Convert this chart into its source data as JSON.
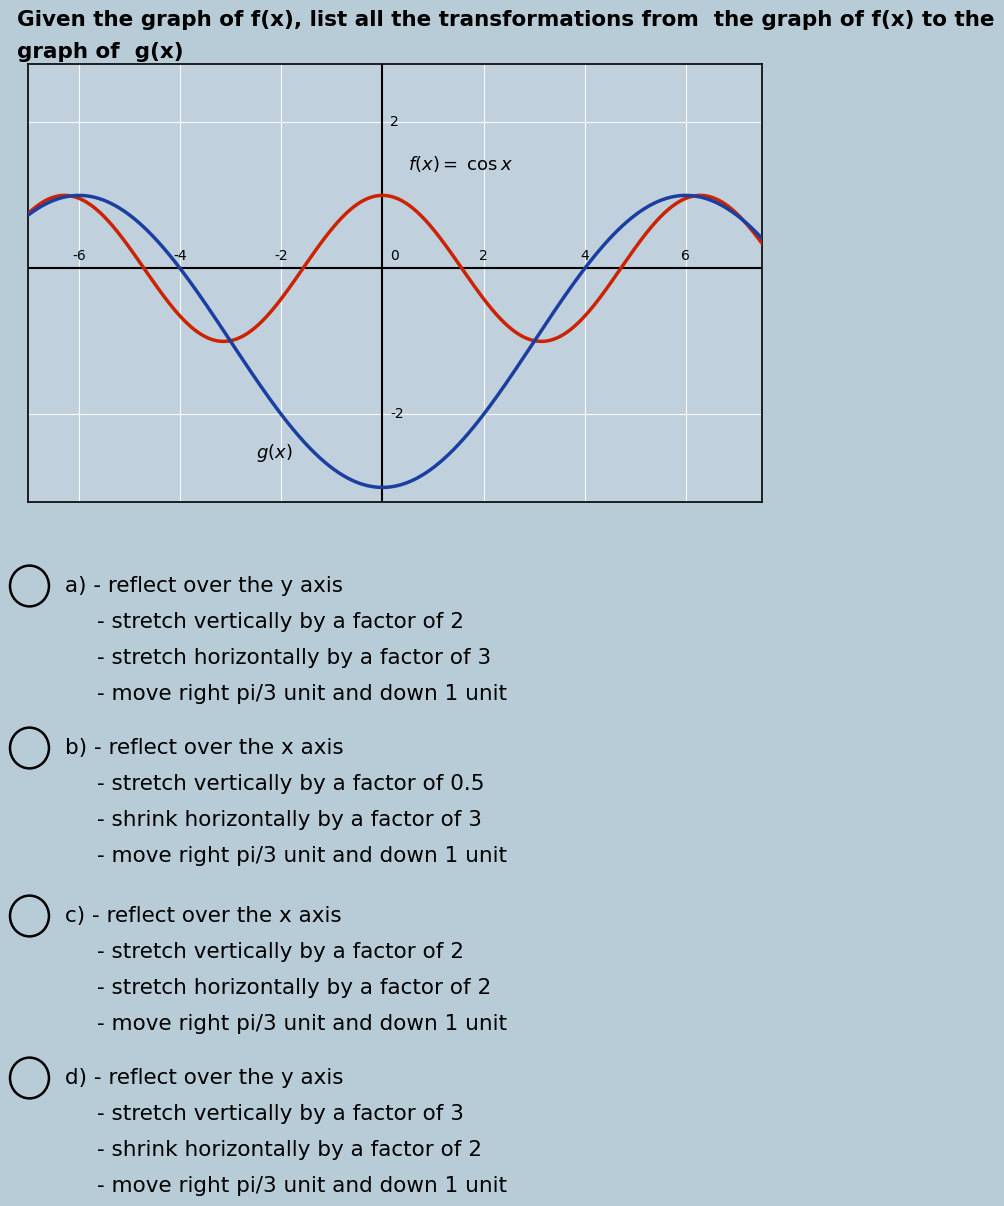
{
  "title_line1": "Given the graph of f(x), list all the transformations from  the graph of f(x) to the",
  "title_line2": "graph of  g(x)",
  "bg_color": "#b8ccd8",
  "graph_bg": "#c0d0dc",
  "graph_xlim": [
    -7.0,
    7.5
  ],
  "graph_ylim": [
    -3.2,
    2.8
  ],
  "graph_xticks": [
    -6,
    -4,
    -2,
    0,
    2,
    4,
    6
  ],
  "graph_yticks": [
    -2,
    2
  ],
  "fx_color": "#cc2200",
  "gx_color": "#1a3fa0",
  "options": [
    {
      "letter": "a)",
      "lines": [
        "- reflect over the y axis",
        "- stretch vertically by a factor of 2",
        "- stretch horizontally by a factor of 3",
        "- move right pi/3 unit and down 1 unit"
      ]
    },
    {
      "letter": "b)",
      "lines": [
        "- reflect over the x axis",
        "- stretch vertically by a factor of 0.5",
        "- shrink horizontally by a factor of 3",
        "- move right pi/3 unit and down 1 unit"
      ]
    },
    {
      "letter": "c)",
      "lines": [
        "- reflect over the x axis",
        "- stretch vertically by a factor of 2",
        "- stretch horizontally by a factor of 2",
        "- move right pi/3 unit and down 1 unit"
      ]
    },
    {
      "letter": "d)",
      "lines": [
        "- reflect over the y axis",
        "- stretch vertically by a factor of 3",
        "- shrink horizontally by a factor of 2",
        "- move right pi/3 unit and down 1 unit"
      ]
    }
  ],
  "title_fontsize": 15.5,
  "option_fontsize": 15.5,
  "label_fontsize": 13,
  "tick_fontsize": 10,
  "graph_linewidth": 2.5
}
